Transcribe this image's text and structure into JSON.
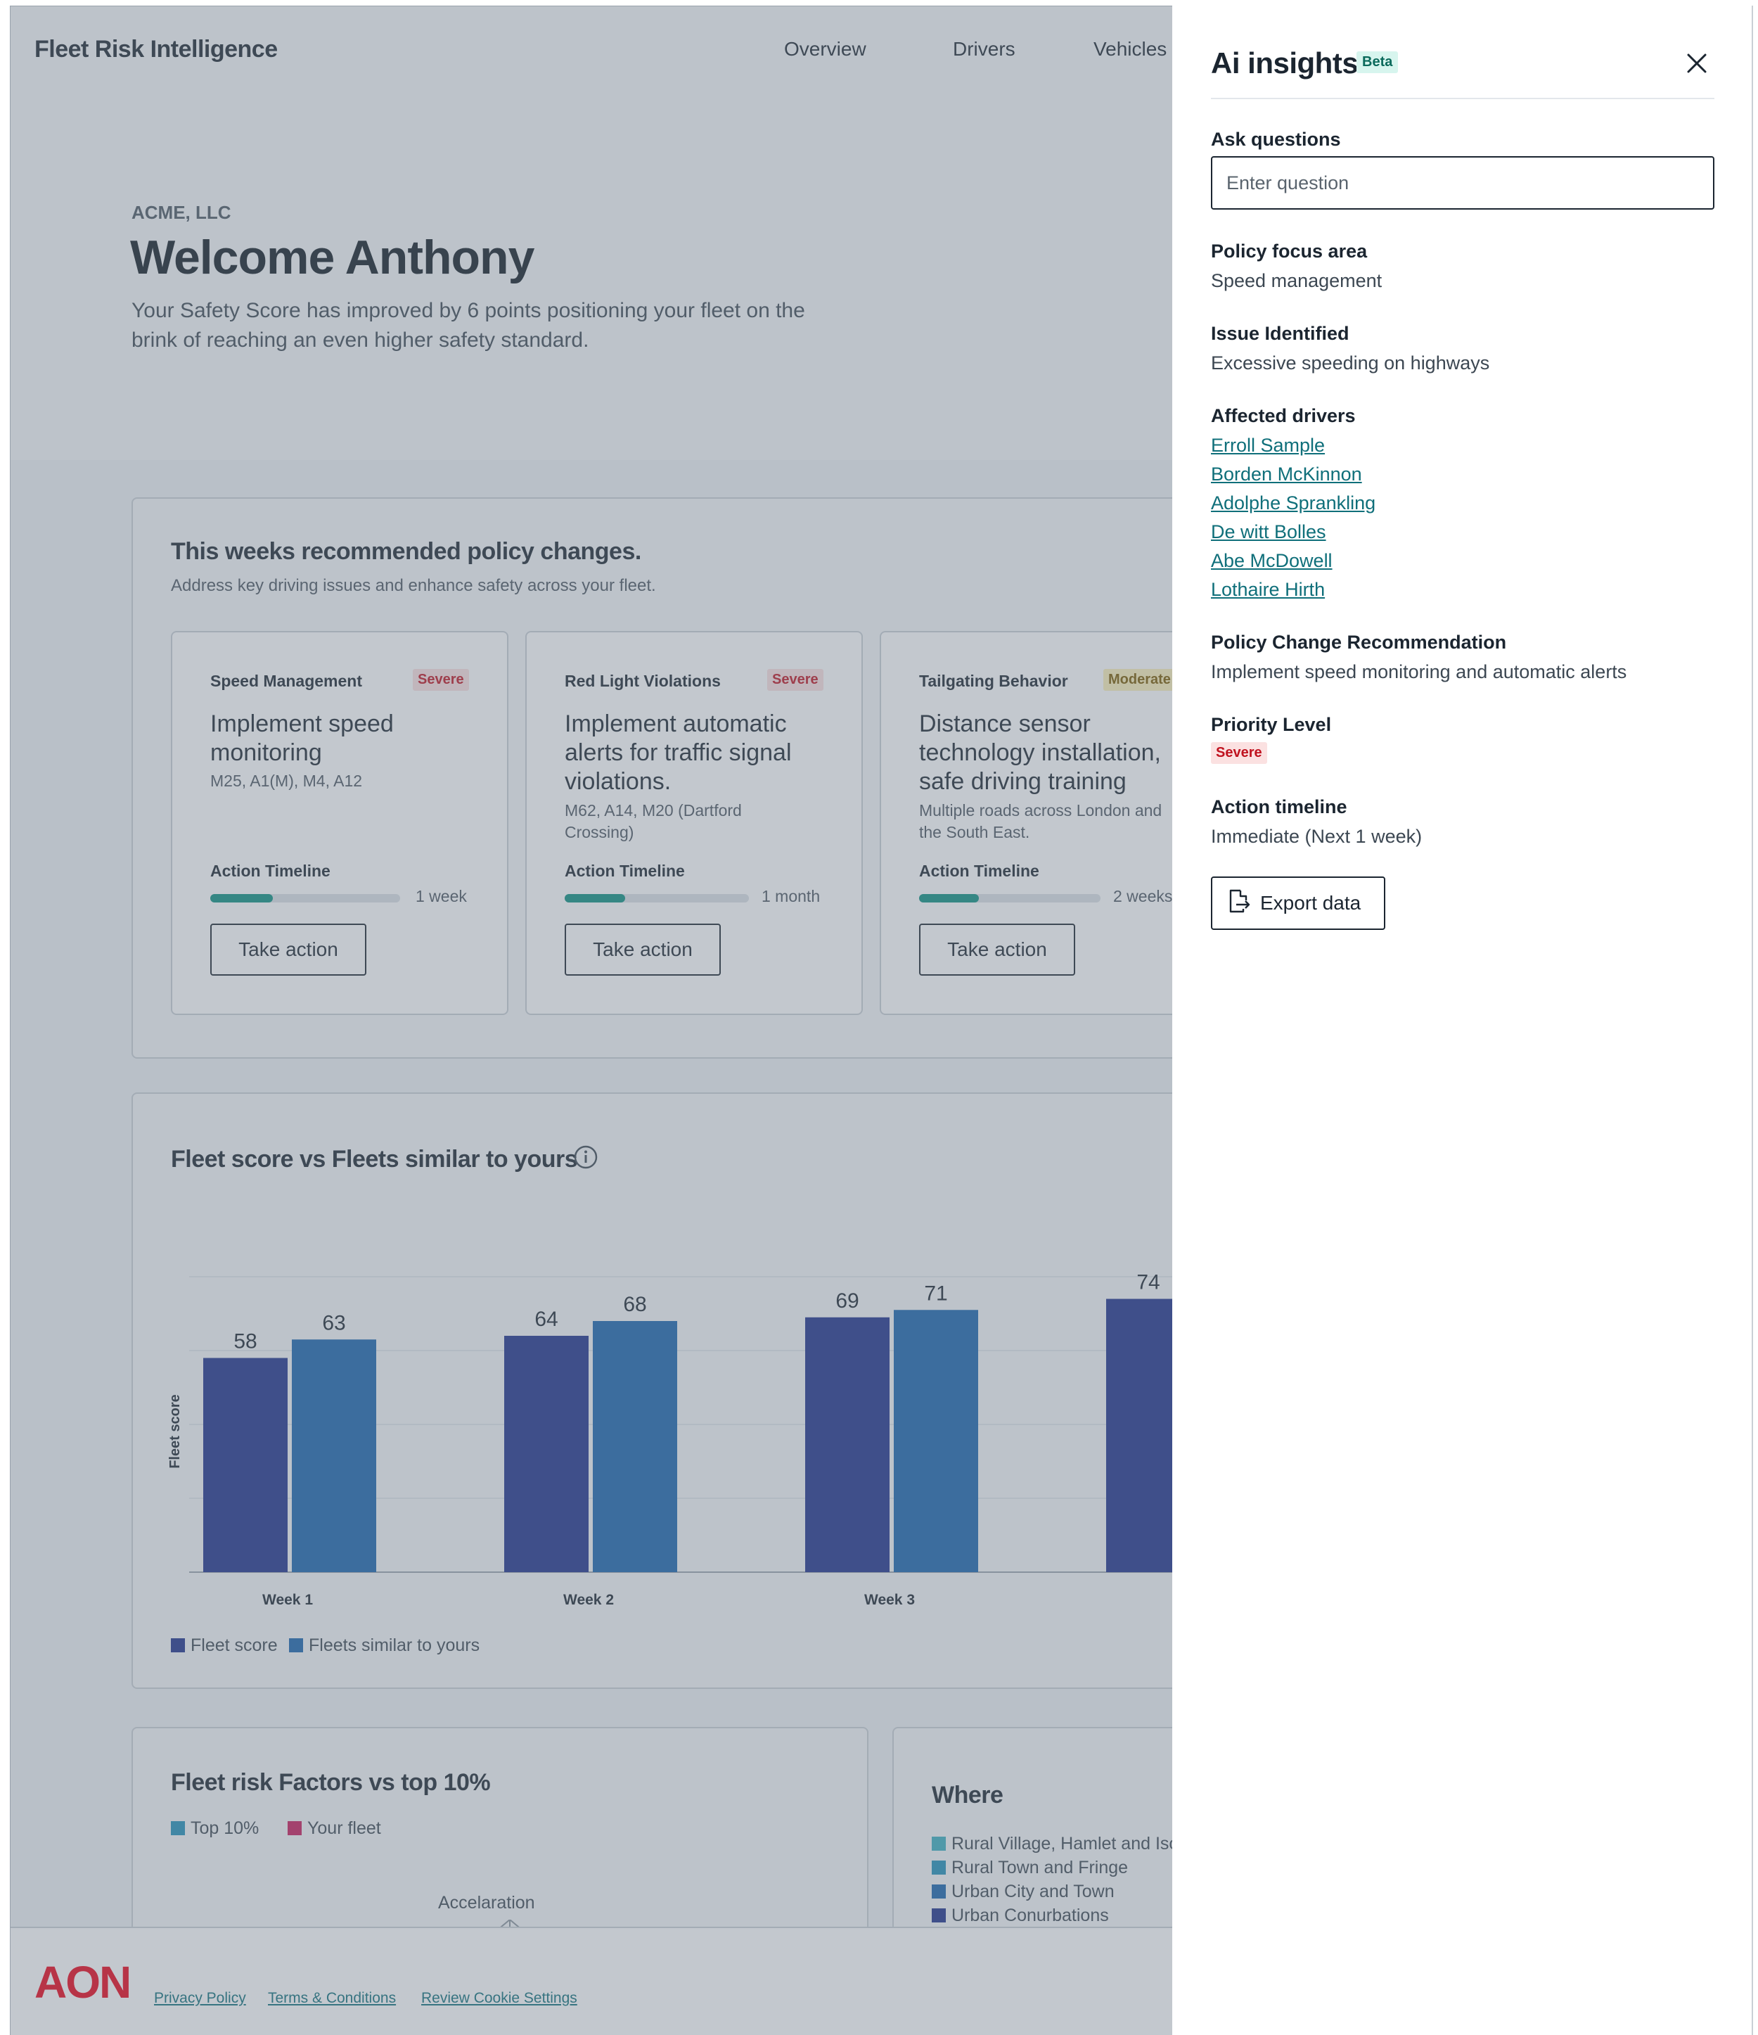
{
  "app": {
    "brand": "Fleet Risk Intelligence"
  },
  "nav": [
    "Overview",
    "Drivers",
    "Vehicles"
  ],
  "hero": {
    "company": "ACME, LLC",
    "welcome": "Welcome Anthony",
    "subtitle": "Your Safety Score has improved by 6 points positioning your fleet on the brink of reaching an even higher safety standard."
  },
  "policy": {
    "title": "This weeks recommended policy changes.",
    "subtitle": "Address key driving issues and enhance safety across your fleet.",
    "cards": [
      {
        "category": "Speed Management",
        "severity": "Severe",
        "title": "Implement speed monitoring",
        "roads": "M25, A1(M), M4, A12",
        "timeline_label": "Action Timeline",
        "timeline_value": "1 week",
        "progress": 0.33,
        "action": "Take action"
      },
      {
        "category": "Red Light Violations",
        "severity": "Severe",
        "title": "Implement automatic alerts for traffic signal violations.",
        "roads": "M62, A14, M20 (Dartford Crossing)",
        "timeline_label": "Action Timeline",
        "timeline_value": "1 month",
        "progress": 0.33,
        "action": "Take action"
      },
      {
        "category": "Tailgating Behavior",
        "severity": "Moderate",
        "title": "Distance sensor technology installation, safe driving training",
        "roads": "Multiple roads across London and the South East.",
        "timeline_label": "Action Timeline",
        "timeline_value": "2 weeks",
        "progress": 0.33,
        "action": "Take action"
      }
    ]
  },
  "chart_section": {
    "title": "Fleet score vs Fleets  similar to yours"
  },
  "chart_data": {
    "type": "bar",
    "title": "Fleet score vs Fleets  similar to yours",
    "ylabel": "Fleet score",
    "xlabel": "",
    "ylim": [
      0,
      80
    ],
    "grid": true,
    "categories": [
      "Week 1",
      "Week 2",
      "Week 3",
      ""
    ],
    "series": [
      {
        "name": "Fleet score",
        "color": "#1d2f8a",
        "values": [
          58,
          64,
          69,
          74
        ]
      },
      {
        "name": "Fleets similar to yours",
        "color": "#1763ad",
        "values": [
          63,
          68,
          71,
          null
        ]
      }
    ],
    "legend": "bottom-left"
  },
  "risk": {
    "title": "Fleet risk Factors vs top 10%",
    "legend": [
      {
        "name": "Top 10%",
        "color": "#1f90b8"
      },
      {
        "name": "Your fleet",
        "color": "#c8195a"
      }
    ],
    "axis_label": "Accelaration"
  },
  "where": {
    "title": "Where",
    "legend": [
      {
        "name": "Rural Village, Hamlet and Iso",
        "color": "#3aafc0"
      },
      {
        "name": "Rural Town and Fringe",
        "color": "#1f90b8"
      },
      {
        "name": "Urban City and Town",
        "color": "#1763ad"
      },
      {
        "name": "Urban Conurbations",
        "color": "#1d2f8a"
      }
    ]
  },
  "footer": {
    "logo": "AON",
    "links": [
      "Privacy Policy",
      "Terms & Conditions",
      "Review Cookie Settings"
    ]
  },
  "drawer": {
    "title": "Ai insights",
    "beta": "Beta",
    "ask_label": "Ask questions",
    "ask_placeholder": "Enter question",
    "focus_label": "Policy focus area",
    "focus_value": "Speed management",
    "issue_label": "Issue Identified",
    "issue_value": "Excessive speeding on highways",
    "drivers_label": "Affected drivers",
    "drivers": [
      "Erroll Sample",
      "Borden McKinnon",
      "Adolphe Sprankling",
      "De witt Bolles",
      "Abe McDowell",
      "Lothaire Hirth"
    ],
    "recommendation_label": "Policy Change Recommendation",
    "recommendation_value": "Implement speed monitoring and automatic alerts",
    "priority_label": "Priority Level",
    "priority_value": "Severe",
    "timeline_label": "Action timeline",
    "timeline_value": "Immediate (Next 1 week)",
    "export_label": "Export data"
  },
  "colors": {
    "accent": "#0b8f80",
    "link": "#0f6f7a",
    "severe": "#c0121f",
    "brand_red": "#eb0017"
  }
}
